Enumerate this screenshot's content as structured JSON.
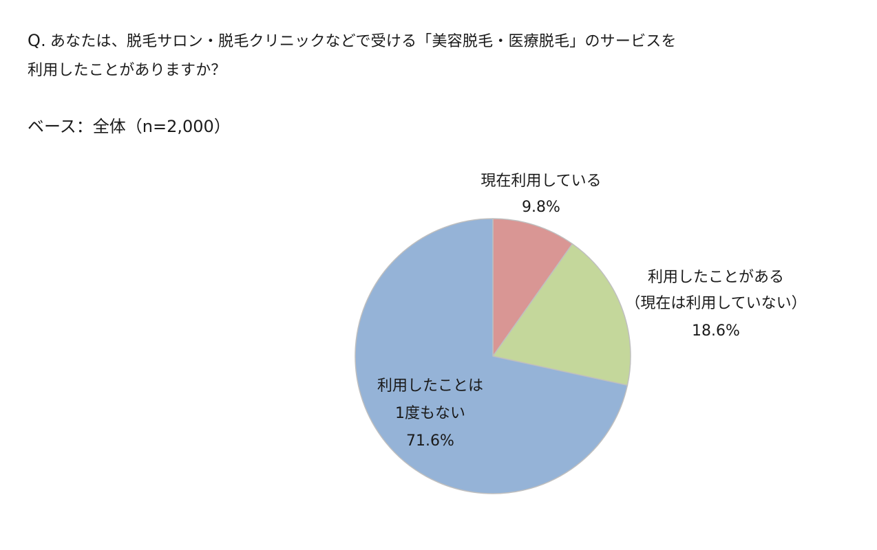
{
  "question": {
    "prefix": "Q.",
    "line1": "あなたは、脱毛サロン・脱毛クリニックなどで受ける「美容脱毛・医療脱毛」のサービスを",
    "line2": "利用したことがありますか？"
  },
  "base_text": "ベース：全体（n=2,000）",
  "chart_data": {
    "type": "pie",
    "title": "",
    "start_angle_deg": 0,
    "direction": "clockwise",
    "slices": [
      {
        "label_lines": [
          "現在利用している"
        ],
        "value": 9.8,
        "value_label": "9.8%",
        "color": "#d99694"
      },
      {
        "label_lines": [
          "利用したことがある",
          "（現在は利用していない）"
        ],
        "value": 18.6,
        "value_label": "18.6%",
        "color": "#c4d79b"
      },
      {
        "label_lines": [
          "利用したことは",
          "1度もない"
        ],
        "value": 71.6,
        "value_label": "71.6%",
        "color": "#95b3d7"
      }
    ],
    "edge_color": "#bfbfbf"
  }
}
